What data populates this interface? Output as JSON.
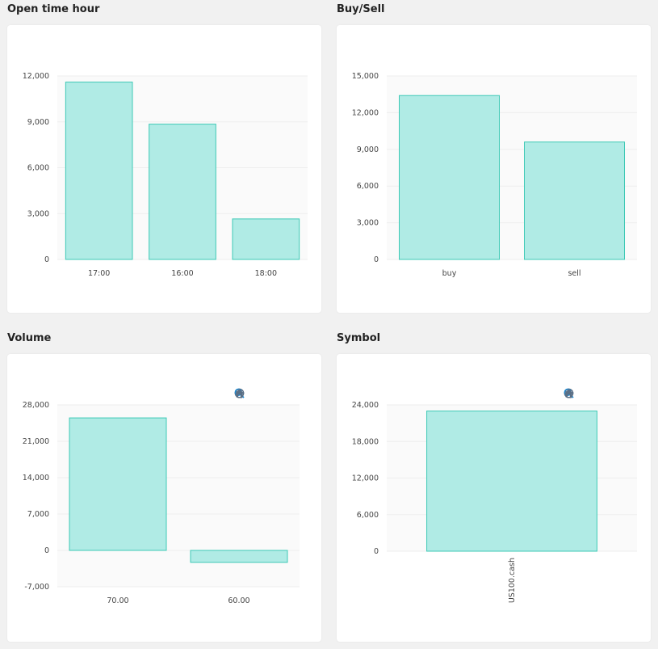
{
  "panels": [
    {
      "title": "Open time hour"
    },
    {
      "title": "Buy/Sell"
    },
    {
      "title": "Volume"
    },
    {
      "title": "Symbol"
    }
  ],
  "toolbar_icons": [
    "zoom-in-icon",
    "zoom-out-icon",
    "zoom-select-icon",
    "pan-hand-icon",
    "reset-home-icon"
  ],
  "colors": {
    "bar_fill": "#b0ebe5",
    "bar_stroke": "#3ec9b6",
    "grid": "#eeeeee",
    "plot_bg": "#fafafa",
    "icon": "#5a6f86",
    "icon_active": "#1b8ad3"
  },
  "chart_data": [
    {
      "type": "bar",
      "title": "Open time hour",
      "categories": [
        "17:00",
        "16:00",
        "18:00"
      ],
      "values": [
        11600,
        8850,
        2650
      ],
      "yticks": [
        "12,000",
        "9,000",
        "6,000",
        "3,000",
        "0"
      ],
      "ytick_values": [
        12000,
        9000,
        6000,
        3000,
        0
      ],
      "ylim": [
        0,
        12000
      ],
      "grid": true
    },
    {
      "type": "bar",
      "title": "Buy/Sell",
      "categories": [
        "buy",
        "sell"
      ],
      "values": [
        13400,
        9600
      ],
      "yticks": [
        "15,000",
        "12,000",
        "9,000",
        "6,000",
        "3,000",
        "0"
      ],
      "ytick_values": [
        15000,
        12000,
        9000,
        6000,
        3000,
        0
      ],
      "ylim": [
        0,
        15000
      ],
      "grid": true
    },
    {
      "type": "bar",
      "title": "Volume",
      "categories": [
        "70.00",
        "60.00"
      ],
      "values": [
        25500,
        -2300
      ],
      "yticks": [
        "28,000",
        "21,000",
        "14,000",
        "7,000",
        "0",
        "-7,000"
      ],
      "ytick_values": [
        28000,
        21000,
        14000,
        7000,
        0,
        -7000
      ],
      "ylim": [
        -7000,
        28000
      ],
      "grid": true
    },
    {
      "type": "bar",
      "title": "Symbol",
      "categories": [
        "US100.cash"
      ],
      "values": [
        23000
      ],
      "yticks": [
        "24,000",
        "18,000",
        "12,000",
        "6,000",
        "0"
      ],
      "ytick_values": [
        24000,
        18000,
        12000,
        6000,
        0
      ],
      "ylim": [
        0,
        24000
      ],
      "grid": true
    }
  ]
}
